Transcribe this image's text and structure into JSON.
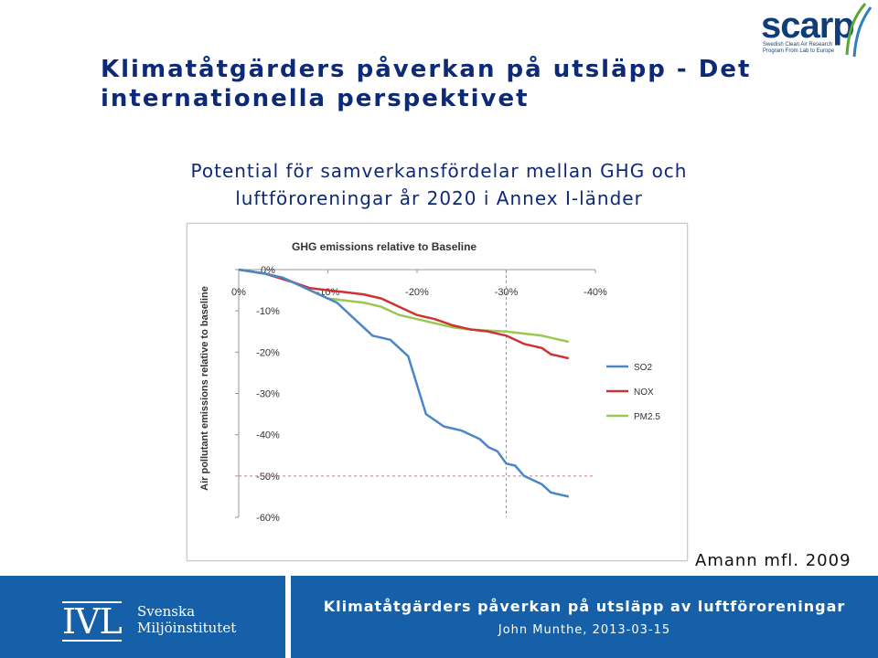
{
  "header": {
    "logo": {
      "name": "scarp",
      "tagline": "Swedish Clean Air Research Program From Lab to Europe"
    }
  },
  "slide": {
    "title": "Klimatåtgärders påverkan på utsläpp - Det internationella perspektivet",
    "subtitle": "Potential för samverkansfördelar mellan GHG och luftföroreningar år 2020 i Annex I-länder",
    "citation": "Amann mfl. 2009"
  },
  "footer": {
    "logo_letters": "IVL",
    "logo_name": "Svenska Miljöinstitutet",
    "title": "Klimatåtgärders påverkan på utsläpp av luftföroreningar",
    "author": "John Munthe, 2013-03-15",
    "background": "#1560a8"
  },
  "chart_data": {
    "type": "line",
    "title": "GHG emissions relative to Baseline",
    "ylabel": "Air pollutant emissions relative to baseline",
    "xlim": [
      0,
      -40
    ],
    "ylim": [
      0,
      -60
    ],
    "x_ticks": [
      "0%",
      "-10%",
      "-20%",
      "-30%",
      "-40%"
    ],
    "y_ticks": [
      "0%",
      "-10%",
      "-20%",
      "-30%",
      "-40%",
      "-50%",
      "-60%"
    ],
    "reference": {
      "x": -30,
      "y": -50,
      "style": "dashed",
      "color": "#e07070"
    },
    "legend_position": "right",
    "series": [
      {
        "name": "SO2",
        "color": "#4a86c8",
        "x": [
          0,
          -3,
          -5,
          -7,
          -9,
          -11,
          -13,
          -15,
          -17,
          -19,
          -21,
          -23,
          -25,
          -26,
          -27,
          -28,
          -29,
          -30,
          -31,
          -32,
          -33,
          -34,
          -35,
          -36,
          -37
        ],
        "y": [
          0,
          -1,
          -2,
          -4,
          -6,
          -8,
          -12,
          -16,
          -17,
          -21,
          -35,
          -38,
          -39,
          -40,
          -41,
          -43,
          -44,
          -47,
          -47.5,
          -50,
          -51,
          -52,
          -54,
          -54.5,
          -55
        ]
      },
      {
        "name": "NOX",
        "color": "#cc3333",
        "x": [
          0,
          -3,
          -6,
          -8,
          -10,
          -12,
          -14,
          -16,
          -18,
          -20,
          -22,
          -24,
          -26,
          -28,
          -30,
          -32,
          -34,
          -35,
          -36,
          -37
        ],
        "y": [
          0,
          -1,
          -3,
          -4.5,
          -5,
          -5.5,
          -6,
          -7,
          -9,
          -11,
          -12,
          -13.5,
          -14.5,
          -15,
          -16,
          -18,
          -19,
          -20.5,
          -21,
          -21.5
        ]
      },
      {
        "name": "PM2.5",
        "color": "#9ac850",
        "x": [
          0,
          -3,
          -6,
          -8,
          -10,
          -12,
          -14,
          -16,
          -18,
          -20,
          -22,
          -24,
          -26,
          -28,
          -30,
          -32,
          -34,
          -36,
          -37
        ],
        "y": [
          0,
          -1,
          -3,
          -5,
          -7,
          -7.5,
          -8,
          -9,
          -11,
          -12,
          -13,
          -14,
          -14.5,
          -14.8,
          -15,
          -15.5,
          -16,
          -17,
          -17.5
        ]
      }
    ]
  }
}
